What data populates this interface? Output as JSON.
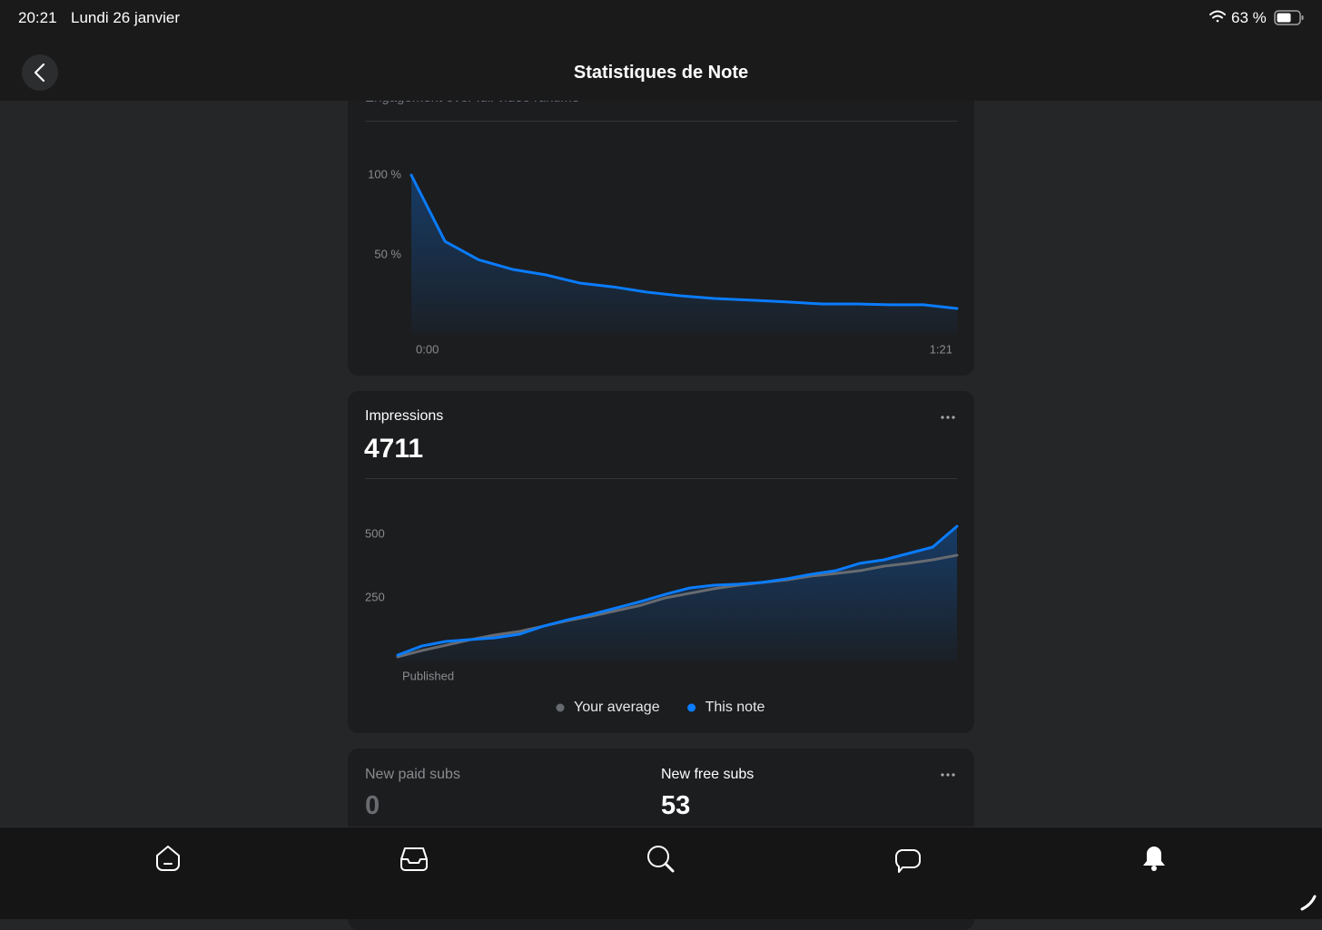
{
  "status_bar": {
    "time": "20:21",
    "date": "Lundi 26 janvier",
    "battery": "63 %"
  },
  "header": {
    "title": "Statistiques de Note"
  },
  "engagement": {
    "chart_data": {
      "type": "area",
      "subtitle": "Engagement over full video runtime",
      "x": [
        0,
        5,
        10,
        15,
        20,
        25,
        30,
        35,
        40,
        45,
        51,
        56,
        61,
        66,
        71,
        76,
        81
      ],
      "values": [
        100,
        58.5,
        47,
        41,
        37.5,
        32.4,
        30,
        26.7,
        24.4,
        22.7,
        21.6,
        20.5,
        19.3,
        19.3,
        18.8,
        18.8,
        16.5
      ],
      "color": "#0a7cff",
      "xlim": [
        0,
        81
      ],
      "xticks": [
        {
          "value": 0,
          "label": "0:00"
        },
        {
          "value": 81,
          "label": "1:21"
        }
      ],
      "ylim": [
        0,
        125
      ],
      "yticks": [
        {
          "value": 50,
          "label": "50 %"
        },
        {
          "value": 100,
          "label": "100 %"
        }
      ]
    }
  },
  "impressions": {
    "title": "Impressions",
    "total": 4711,
    "chart_data": {
      "type": "line",
      "categories": [
        "Published",
        null,
        null,
        null,
        null,
        null,
        null,
        null,
        null,
        null,
        null,
        null,
        null,
        null,
        null,
        null,
        null,
        null,
        null,
        null,
        null,
        null,
        null,
        null
      ],
      "series": [
        {
          "name": "Your average",
          "color": "#676b70",
          "values": [
            18,
            43,
            64,
            86,
            104,
            118,
            139,
            161,
            179,
            200,
            221,
            250,
            268,
            286,
            300,
            311,
            321,
            336,
            346,
            357,
            375,
            386,
            400,
            418
          ]
        },
        {
          "name": "This note",
          "color": "#0a7cff",
          "fill": true,
          "values": [
            25,
            61,
            79,
            86,
            93,
            107,
            139,
            164,
            186,
            211,
            236,
            264,
            289,
            300,
            304,
            311,
            325,
            343,
            357,
            386,
            400,
            425,
            450,
            532
          ]
        }
      ],
      "ylim": [
        0,
        600
      ],
      "yticks": [
        250,
        500
      ]
    }
  },
  "subscriptions": {
    "paid": {
      "label": "New paid subs",
      "value": 0
    },
    "free": {
      "label": "New free subs",
      "value": 53
    }
  }
}
